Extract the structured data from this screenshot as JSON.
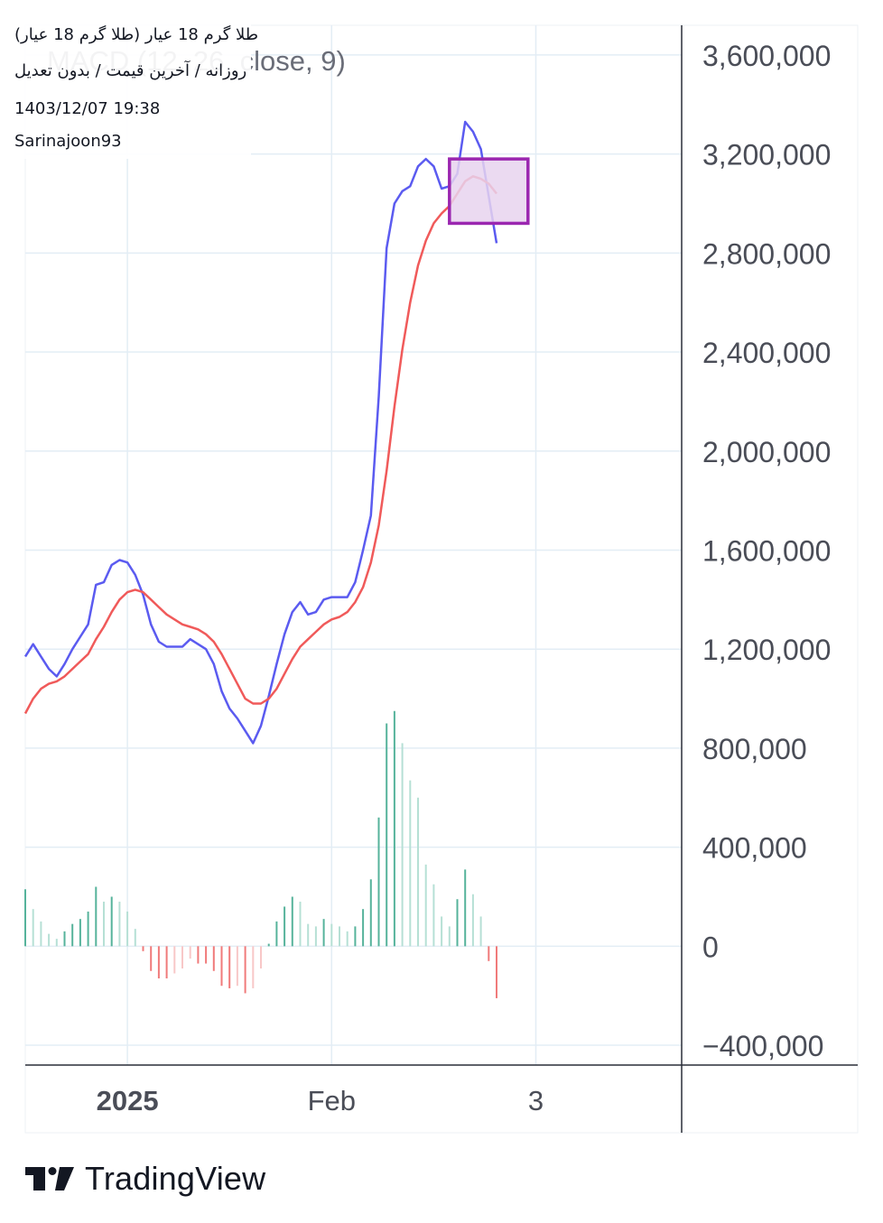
{
  "header": {
    "symbol": "طلا گرم 18 عیار (طلا گرم 18 عیار)",
    "settings": "روزانه / آخرین قیمت / بدون تعدیل",
    "timestamp": "1403/12/07 19:38",
    "author": "Sarinajoon93",
    "study_title": "MACD (12, 26, close, 9)"
  },
  "branding": {
    "logo_text": "TradingView"
  },
  "colors": {
    "macd_line": "#5b5bf0",
    "signal_line": "#f05a5a",
    "hist_pos_strong": "#56b39b",
    "hist_pos_weak": "#b6e0d5",
    "hist_neg_strong": "#f07a7a",
    "hist_neg_weak": "#f8c8c8",
    "grid": "#e3edf5",
    "highlight_fill": "#e8d3ee",
    "highlight_stroke": "#9b27b0"
  },
  "chart_data": {
    "type": "line",
    "title": "MACD (12, 26, close, 9)",
    "ylim": [
      -480000,
      3720000
    ],
    "y_ticks": [
      3600000,
      3200000,
      2800000,
      2400000,
      2000000,
      1600000,
      1200000,
      800000,
      400000,
      0,
      -400000
    ],
    "y_tick_labels": [
      "3,600,000",
      "3,200,000",
      "2,800,000",
      "2,400,000",
      "2,000,000",
      "1,600,000",
      "1,200,000",
      "800,000",
      "400,000",
      "0",
      "−400,000"
    ],
    "x_ticks": [
      {
        "index": 13,
        "label": "2025",
        "bold": true
      },
      {
        "index": 39,
        "label": "Feb",
        "bold": false
      },
      {
        "index": 65,
        "label": "3",
        "bold": false
      }
    ],
    "grid": true,
    "series": [
      {
        "name": "MACD",
        "type": "line",
        "values": [
          1170000,
          1220000,
          1170000,
          1120000,
          1090000,
          1140000,
          1200000,
          1250000,
          1300000,
          1460000,
          1470000,
          1540000,
          1560000,
          1550000,
          1500000,
          1420000,
          1300000,
          1230000,
          1210000,
          1210000,
          1210000,
          1240000,
          1220000,
          1200000,
          1140000,
          1030000,
          960000,
          920000,
          870000,
          820000,
          890000,
          1010000,
          1140000,
          1260000,
          1350000,
          1390000,
          1340000,
          1350000,
          1400000,
          1410000,
          1410000,
          1410000,
          1470000,
          1600000,
          1740000,
          2220000,
          2820000,
          3000000,
          3050000,
          3070000,
          3150000,
          3180000,
          3150000,
          3060000,
          3070000,
          3120000,
          3330000,
          3290000,
          3220000,
          3030000,
          2840000
        ]
      },
      {
        "name": "Signal",
        "type": "line",
        "values": [
          940000,
          1000000,
          1040000,
          1060000,
          1070000,
          1090000,
          1120000,
          1150000,
          1180000,
          1240000,
          1290000,
          1350000,
          1400000,
          1430000,
          1440000,
          1430000,
          1400000,
          1370000,
          1340000,
          1320000,
          1300000,
          1290000,
          1280000,
          1260000,
          1230000,
          1180000,
          1120000,
          1060000,
          1000000,
          980000,
          980000,
          1000000,
          1040000,
          1100000,
          1160000,
          1210000,
          1240000,
          1270000,
          1300000,
          1320000,
          1330000,
          1350000,
          1390000,
          1450000,
          1550000,
          1700000,
          1920000,
          2180000,
          2410000,
          2600000,
          2750000,
          2850000,
          2920000,
          2960000,
          2990000,
          3040000,
          3090000,
          3110000,
          3100000,
          3080000,
          3040000
        ]
      },
      {
        "name": "Histogram",
        "type": "bar",
        "values": [
          230000,
          150000,
          100000,
          50000,
          30000,
          60000,
          90000,
          110000,
          140000,
          240000,
          180000,
          200000,
          180000,
          140000,
          70000,
          -20000,
          -100000,
          -130000,
          -130000,
          -110000,
          -90000,
          -50000,
          -70000,
          -70000,
          -100000,
          -160000,
          -170000,
          -160000,
          -190000,
          -170000,
          -90000,
          10000,
          100000,
          160000,
          200000,
          180000,
          90000,
          80000,
          110000,
          90000,
          80000,
          60000,
          80000,
          150000,
          270000,
          520000,
          900000,
          950000,
          820000,
          670000,
          600000,
          330000,
          250000,
          120000,
          80000,
          190000,
          310000,
          210000,
          120000,
          -60000,
          -210000
        ]
      }
    ],
    "annotations": [
      {
        "type": "rectangle",
        "index_from": 54,
        "index_to": 64,
        "y_from": 2920000,
        "y_to": 3180000
      }
    ]
  }
}
